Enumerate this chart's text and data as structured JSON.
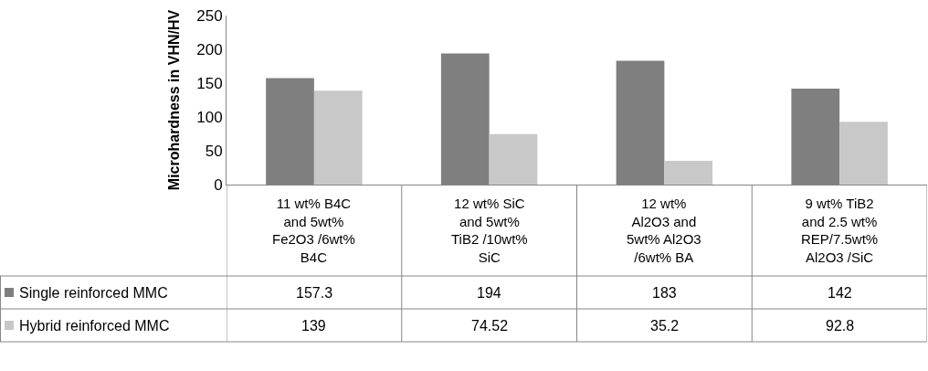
{
  "chart_data": {
    "type": "bar",
    "ylabel": "Microhardness in VHN/HV",
    "categories": [
      "11 wt% B4C and 5wt% Fe2O3 /6wt% B4C",
      "12 wt% SiC and 5wt% TiB2 /10wt% SiC",
      "12 wt% Al2O3 and 5wt% Al2O3 /6wt% BA",
      "9 wt% TiB2 and 2.5 wt% REP/7.5wt% Al2O3 /SiC"
    ],
    "series": [
      {
        "name": "Single reinforced MMC",
        "color": "#7f7f7f",
        "values": [
          157.3,
          194,
          183,
          142
        ]
      },
      {
        "name": "Hybrid reinforced MMC",
        "color": "#c8c8c8",
        "values": [
          139,
          74.52,
          35.2,
          92.8
        ]
      }
    ],
    "ylim": [
      0,
      250
    ],
    "yticks": [
      0,
      50,
      100,
      150,
      200,
      250
    ],
    "data_labels": true,
    "legend": "bottom left"
  }
}
